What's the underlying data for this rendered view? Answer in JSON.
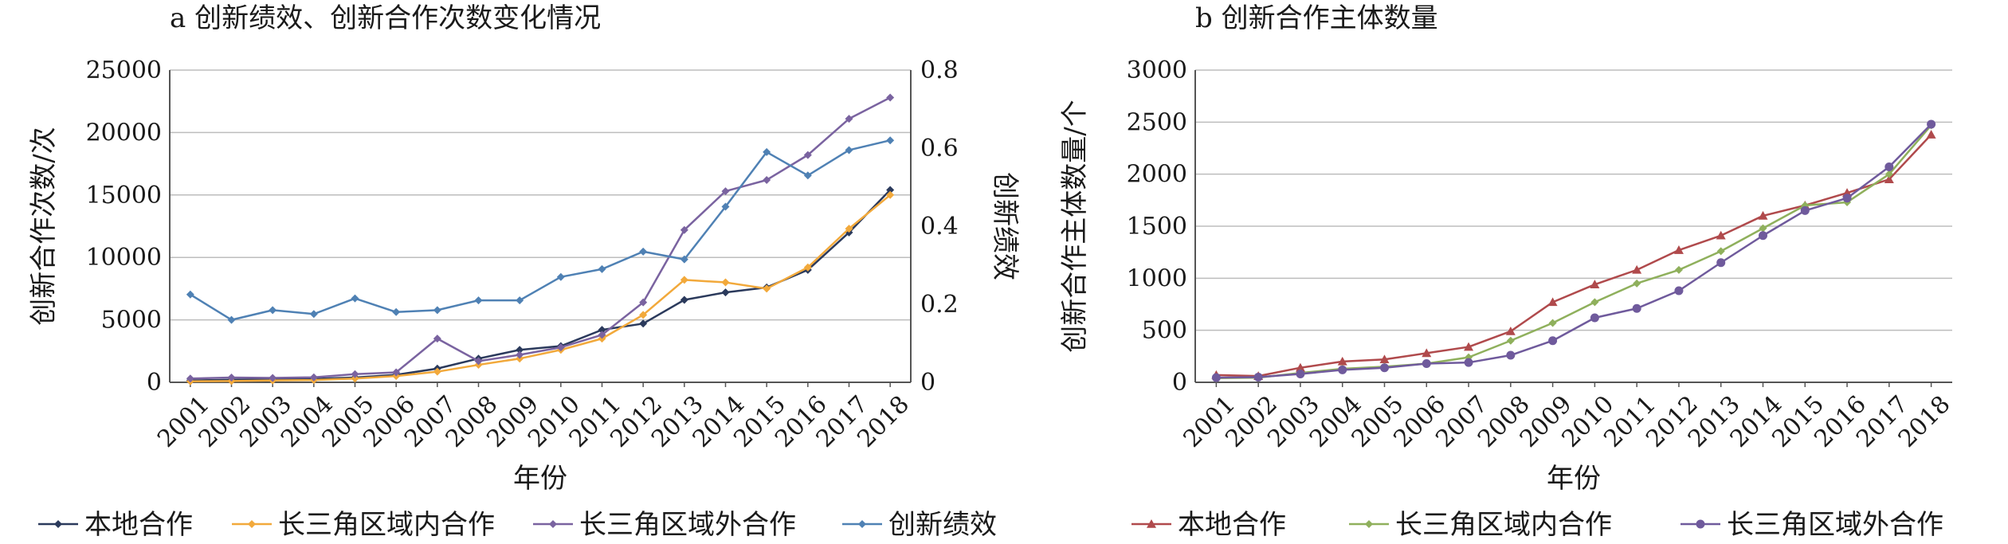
{
  "chart_data": [
    {
      "type": "line",
      "title": "a 创新绩效、创新合作次数变化情况",
      "xlabel": "年份",
      "ylabel": "创新合作次数/次",
      "y2label": "创新绩效",
      "categories": [
        "2001",
        "2002",
        "2003",
        "2004",
        "2005",
        "2006",
        "2007",
        "2008",
        "2009",
        "2010",
        "2011",
        "2012",
        "2013",
        "2014",
        "2015",
        "2016",
        "2017",
        "2018"
      ],
      "ylim": [
        0,
        25000
      ],
      "yticks": [
        0,
        5000,
        10000,
        15000,
        20000,
        25000
      ],
      "y2lim": [
        0,
        0.8
      ],
      "y2ticks": [
        0,
        0.2,
        0.4,
        0.6,
        0.8
      ],
      "grid": true,
      "legend_position": "bottom",
      "series": [
        {
          "name": "本地合作",
          "axis": "left",
          "color": "#2b3a5c",
          "values": [
            150,
            200,
            250,
            280,
            380,
            600,
            1100,
            1900,
            2600,
            2900,
            4200,
            4700,
            6600,
            7200,
            7600,
            9000,
            12000,
            15400
          ]
        },
        {
          "name": "长三角区域内合作",
          "axis": "left",
          "color": "#f2a93b",
          "values": [
            80,
            100,
            150,
            180,
            300,
            500,
            850,
            1400,
            1900,
            2600,
            3500,
            5400,
            8200,
            8000,
            7500,
            9200,
            12300,
            15000
          ]
        },
        {
          "name": "长三角区域外合作",
          "axis": "left",
          "color": "#7a63a0",
          "values": [
            300,
            380,
            350,
            400,
            650,
            800,
            3500,
            1700,
            2200,
            2800,
            3800,
            6400,
            12200,
            15300,
            16200,
            18200,
            21100,
            22800
          ]
        },
        {
          "name": "创新绩效",
          "axis": "right",
          "color": "#4f81b4",
          "values": [
            0.225,
            0.16,
            0.185,
            0.175,
            0.215,
            0.18,
            0.185,
            0.21,
            0.21,
            0.27,
            0.29,
            0.335,
            0.315,
            0.45,
            0.59,
            0.53,
            0.595,
            0.62
          ]
        }
      ]
    },
    {
      "type": "line",
      "title": "b 创新合作主体数量",
      "xlabel": "年份",
      "ylabel": "创新合作主体数量/个",
      "categories": [
        "2001",
        "2002",
        "2003",
        "2004",
        "2005",
        "2006",
        "2007",
        "2008",
        "2009",
        "2010",
        "2011",
        "2012",
        "2013",
        "2014",
        "2015",
        "2016",
        "2017",
        "2018"
      ],
      "ylim": [
        0,
        3000
      ],
      "yticks": [
        0,
        500,
        1000,
        1500,
        2000,
        2500,
        3000
      ],
      "grid": true,
      "legend_position": "bottom",
      "series": [
        {
          "name": "本地合作",
          "color": "#b04a4c",
          "values": [
            70,
            60,
            140,
            200,
            220,
            280,
            340,
            490,
            770,
            940,
            1080,
            1270,
            1410,
            1600,
            1700,
            1820,
            1950,
            2380
          ]
        },
        {
          "name": "长三角区域内合作",
          "color": "#8fb05c",
          "values": [
            40,
            45,
            90,
            130,
            150,
            180,
            240,
            400,
            570,
            770,
            950,
            1080,
            1260,
            1480,
            1700,
            1730,
            2000,
            2470
          ]
        },
        {
          "name": "长三角区域外合作",
          "color": "#6f5a9c",
          "values": [
            45,
            50,
            80,
            120,
            140,
            180,
            190,
            260,
            400,
            620,
            710,
            880,
            1150,
            1410,
            1650,
            1770,
            2070,
            2480
          ]
        }
      ]
    }
  ]
}
